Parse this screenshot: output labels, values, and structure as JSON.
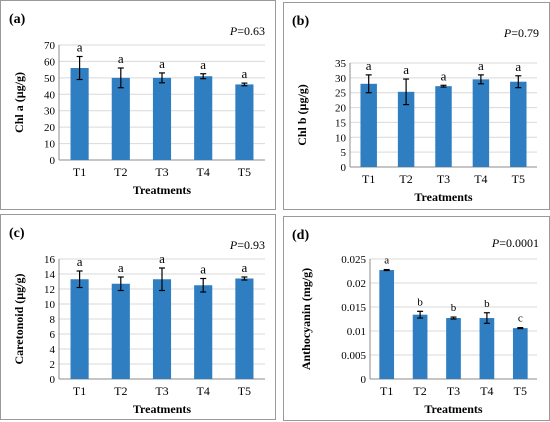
{
  "colors": {
    "bar": "#2f7ec2",
    "axis": "#8c8c8c",
    "grid": "#d9d9d9",
    "error": "#000000"
  },
  "chart_data": [
    {
      "type": "bar",
      "panel_label": "(a)",
      "p_prefix": "P",
      "p_value": "=0.63",
      "ylabel": "Chl a (µg/g)",
      "xlabel": "Treatments",
      "categories": [
        "T1",
        "T2",
        "T3",
        "T4",
        "T5"
      ],
      "values": [
        56,
        50,
        50,
        51,
        46
      ],
      "errors": [
        7,
        6,
        3,
        1.5,
        0.8
      ],
      "letters": [
        "a",
        "a",
        "a",
        "a",
        "a"
      ],
      "ylim": [
        0,
        70
      ],
      "yticks": [
        "0",
        "10",
        "20",
        "30",
        "40",
        "50",
        "60",
        "70"
      ],
      "grid": true
    },
    {
      "type": "bar",
      "panel_label": "(b)",
      "p_prefix": "P",
      "p_value": "=0.79",
      "ylabel": "Chl b (µg/g)",
      "xlabel": "Treatments",
      "categories": [
        "T1",
        "T2",
        "T3",
        "T4",
        "T5"
      ],
      "values": [
        28,
        25.3,
        27.2,
        29.5,
        28.7
      ],
      "errors": [
        3,
        4.3,
        0.3,
        1.5,
        2
      ],
      "letters": [
        "a",
        "a",
        "a",
        "a",
        "a"
      ],
      "ylim": [
        0,
        35
      ],
      "yticks": [
        "0",
        "5",
        "10",
        "15",
        "20",
        "25",
        "30",
        "35"
      ],
      "grid": true
    },
    {
      "type": "bar",
      "panel_label": "(c)",
      "p_prefix": "P",
      "p_value": "=0.93",
      "ylabel": "Caretonoid (µg/g)",
      "xlabel": "Treatments",
      "categories": [
        "T1",
        "T2",
        "T3",
        "T4",
        "T5"
      ],
      "values": [
        13.3,
        12.7,
        13.3,
        12.5,
        13.4
      ],
      "errors": [
        1.1,
        0.9,
        1.5,
        0.9,
        0.2
      ],
      "letters": [
        "a",
        "a",
        "a",
        "a",
        "a"
      ],
      "ylim": [
        0,
        16
      ],
      "yticks": [
        "0",
        "2",
        "4",
        "6",
        "8",
        "10",
        "12",
        "14",
        "16"
      ],
      "grid": true
    },
    {
      "type": "bar",
      "panel_label": "(d)",
      "p_prefix": "P",
      "p_value": "=0.0001",
      "ylabel": "Anthocyanin (mg/g)",
      "xlabel": "Treatments",
      "categories": [
        "T1",
        "T2",
        "T3",
        "T4",
        "T5"
      ],
      "values": [
        0.0227,
        0.0134,
        0.0127,
        0.0127,
        0.0106
      ],
      "errors": [
        0.0001,
        0.0007,
        0.0002,
        0.0011,
        0.0001
      ],
      "letters": [
        "a",
        "b",
        "b",
        "b",
        "c"
      ],
      "ylim": [
        0,
        0.025
      ],
      "yticks": [
        "0",
        "0.005",
        "0.01",
        "0.015",
        "0.02",
        "0.025"
      ],
      "grid": true
    }
  ]
}
